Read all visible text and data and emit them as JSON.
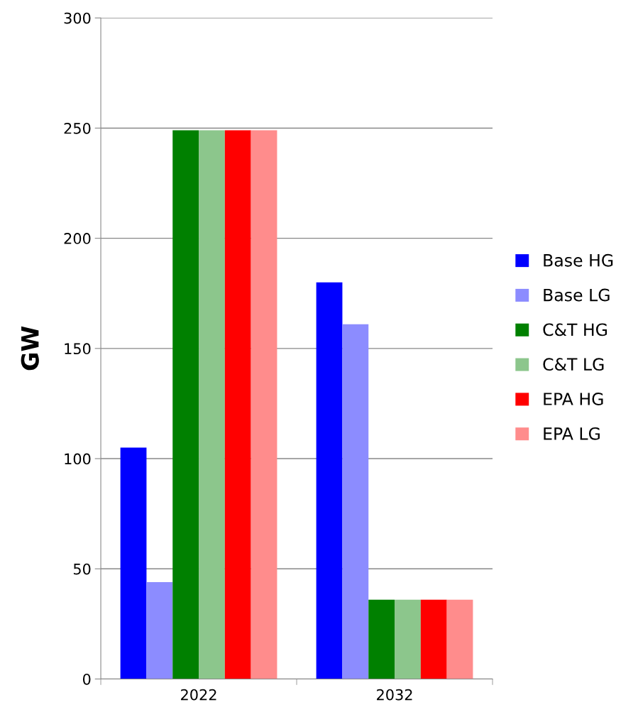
{
  "chart_data": {
    "type": "bar",
    "ylabel": "GW",
    "categories": [
      "2022",
      "2032"
    ],
    "series": [
      {
        "name": "Base HG",
        "color": "#0000ff",
        "values": [
          105,
          180
        ]
      },
      {
        "name": "Base LG",
        "color": "#8c8cff",
        "values": [
          44,
          161
        ]
      },
      {
        "name": "C&T HG",
        "color": "#008000",
        "values": [
          249,
          36
        ]
      },
      {
        "name": "C&T LG",
        "color": "#8cc68c",
        "values": [
          249,
          36
        ]
      },
      {
        "name": "EPA HG",
        "color": "#ff0000",
        "values": [
          249,
          36
        ]
      },
      {
        "name": "EPA LG",
        "color": "#ff8c8c",
        "values": [
          249,
          36
        ]
      }
    ],
    "ylim": [
      0,
      300
    ],
    "yticks": [
      0,
      50,
      100,
      150,
      200,
      250,
      300
    ],
    "grid": "y",
    "legend": "right"
  }
}
